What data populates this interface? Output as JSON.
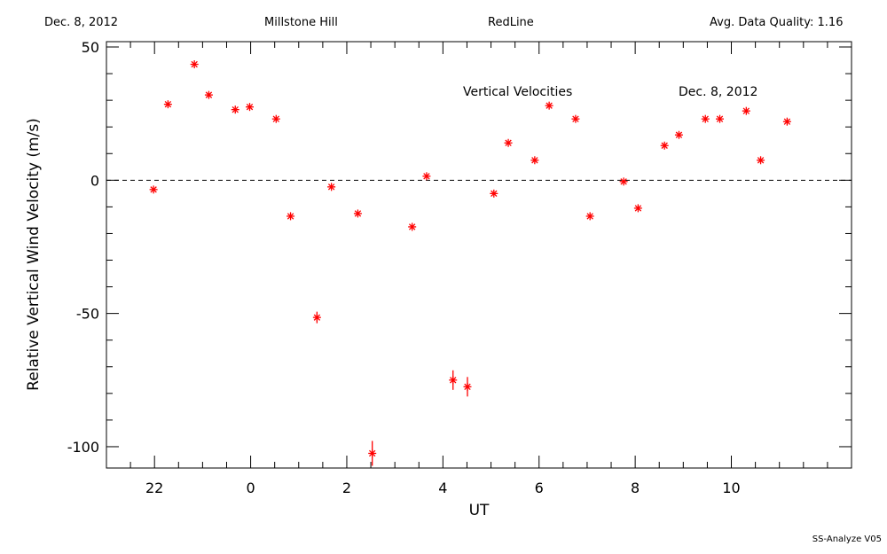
{
  "header": {
    "date": "Dec. 8, 2012",
    "site": "Millstone Hill",
    "instrument": "RedLine",
    "quality": "Avg. Data Quality: 1.16"
  },
  "footer": "SS-Analyze V05",
  "colors": {
    "data": "#ff0000",
    "axes": "#000000",
    "zero_line": "#000000"
  },
  "chart_data": {
    "type": "scatter",
    "annotations": [
      "Vertical Velocities",
      "Dec. 8, 2012"
    ],
    "xlabel": "UT",
    "ylabel": "Relative Vertical Wind Velocity (m/s)",
    "xlim": [
      -3.0,
      12.5
    ],
    "ylim": [
      -108,
      52
    ],
    "x_ticks": [
      22,
      0,
      2,
      4,
      6,
      8,
      10
    ],
    "y_ticks": [
      50,
      0,
      -50,
      -100
    ],
    "zero_line": "dashed",
    "series": [
      {
        "marker": "asterisk",
        "points": [
          {
            "x": -2.02,
            "y": -3.5,
            "err": 0
          },
          {
            "x": -1.72,
            "y": 28.5,
            "err": 0
          },
          {
            "x": -1.17,
            "y": 43.5,
            "err": 0
          },
          {
            "x": -0.87,
            "y": 32.0,
            "err": 0
          },
          {
            "x": -0.32,
            "y": 26.5,
            "err": 0
          },
          {
            "x": -0.02,
            "y": 27.5,
            "err": 0
          },
          {
            "x": 0.53,
            "y": 23.0,
            "err": 0
          },
          {
            "x": 0.83,
            "y": -13.5,
            "err": 0
          },
          {
            "x": 1.38,
            "y": -51.5,
            "err": 1.5
          },
          {
            "x": 1.68,
            "y": -2.5,
            "err": 0
          },
          {
            "x": 2.23,
            "y": -12.5,
            "err": 0
          },
          {
            "x": 2.53,
            "y": -102.5,
            "err": 4.0
          },
          {
            "x": 3.36,
            "y": -17.5,
            "err": 0
          },
          {
            "x": 3.66,
            "y": 1.5,
            "err": 0
          },
          {
            "x": 4.21,
            "y": -75.0,
            "err": 3.0
          },
          {
            "x": 4.51,
            "y": -77.5,
            "err": 3.0
          },
          {
            "x": 5.06,
            "y": -5.0,
            "err": 0
          },
          {
            "x": 5.36,
            "y": 14.0,
            "err": 0
          },
          {
            "x": 5.91,
            "y": 7.5,
            "err": 0
          },
          {
            "x": 6.21,
            "y": 28.0,
            "err": 0
          },
          {
            "x": 6.76,
            "y": 23.0,
            "err": 0
          },
          {
            "x": 7.06,
            "y": -13.5,
            "err": 0
          },
          {
            "x": 7.76,
            "y": -0.5,
            "err": 0
          },
          {
            "x": 8.06,
            "y": -10.5,
            "err": 0
          },
          {
            "x": 8.61,
            "y": 13.0,
            "err": 0
          },
          {
            "x": 8.91,
            "y": 17.0,
            "err": 0
          },
          {
            "x": 9.46,
            "y": 23.0,
            "err": 0
          },
          {
            "x": 9.76,
            "y": 23.0,
            "err": 0
          },
          {
            "x": 10.31,
            "y": 26.0,
            "err": 0
          },
          {
            "x": 10.61,
            "y": 7.5,
            "err": 0
          },
          {
            "x": 11.16,
            "y": 22.0,
            "err": 0
          }
        ]
      }
    ]
  }
}
